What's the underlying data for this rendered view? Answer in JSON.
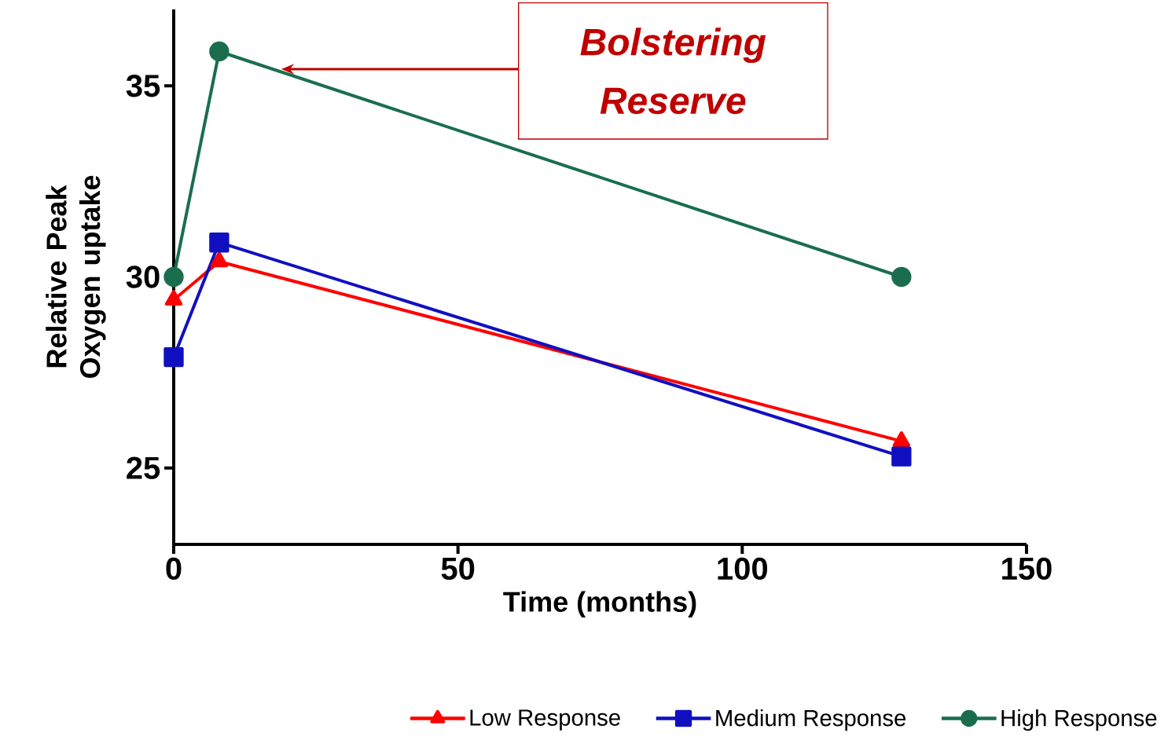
{
  "chart_data": {
    "type": "line",
    "xlabel": "Time (months)",
    "ylabel": "Relative  Peak Oxygen uptake",
    "x": [
      0,
      8,
      128
    ],
    "series": [
      {
        "name": "Low Response",
        "color": "#ff0000",
        "marker": "triangle",
        "values": [
          29.4,
          30.4,
          25.7
        ]
      },
      {
        "name": "Medium Response",
        "color": "#1010c0",
        "marker": "square",
        "values": [
          27.9,
          30.9,
          25.3
        ]
      },
      {
        "name": "High Response",
        "color": "#1a6e4e",
        "marker": "circle",
        "values": [
          30,
          35.9,
          30
        ]
      }
    ],
    "xlim": [
      0,
      150
    ],
    "ylim": [
      23,
      37
    ],
    "xticks": [
      0,
      50,
      100,
      150
    ],
    "yticks": [
      25,
      30,
      35
    ],
    "annotations": [
      "Bolstering Reserve"
    ],
    "legend": "bottom",
    "grid": false,
    "line_style": "solid"
  }
}
